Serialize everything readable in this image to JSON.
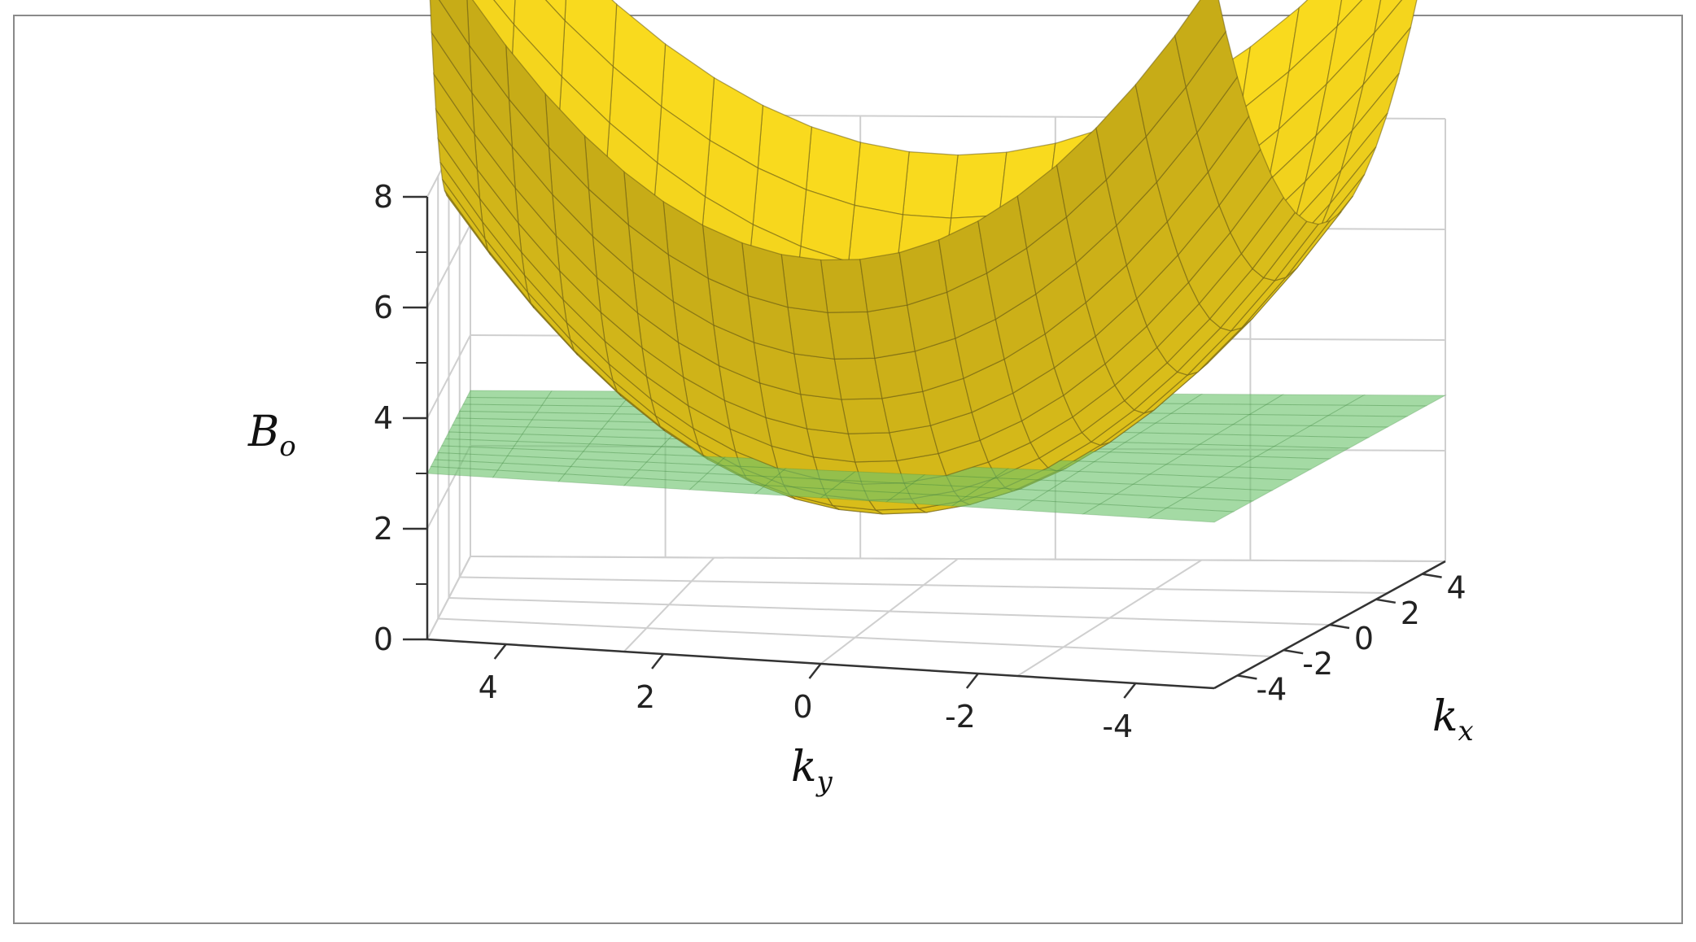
{
  "chart_data": {
    "type": "surface3d",
    "title": "",
    "xlabel": "k_x",
    "ylabel": "k_y",
    "zlabel": "B_o",
    "axis_labels": {
      "x": {
        "base": "k",
        "sub": "x"
      },
      "y": {
        "base": "k",
        "sub": "y"
      },
      "z": {
        "base": "B",
        "sub": "o"
      }
    },
    "x_ticks": [
      "4",
      "2",
      "0",
      "-2",
      "-4"
    ],
    "y_ticks": [
      "4",
      "2",
      "0",
      "-2",
      "-4"
    ],
    "z_ticks": [
      "0",
      "2",
      "4",
      "6",
      "8"
    ],
    "xlim": [
      -5,
      5
    ],
    "ylim": [
      -5,
      5
    ],
    "zlim": [
      0,
      8
    ],
    "grid": true,
    "series": [
      {
        "kind": "paraboloid",
        "formula": "B_o = 1.8 + 0.22*(kx^2 + ky^2)",
        "min": 1.8,
        "color": "#f2e71e"
      },
      {
        "kind": "plane",
        "formula": "B_o = 3",
        "value": 3.0,
        "color": "#6cc46c"
      }
    ]
  }
}
